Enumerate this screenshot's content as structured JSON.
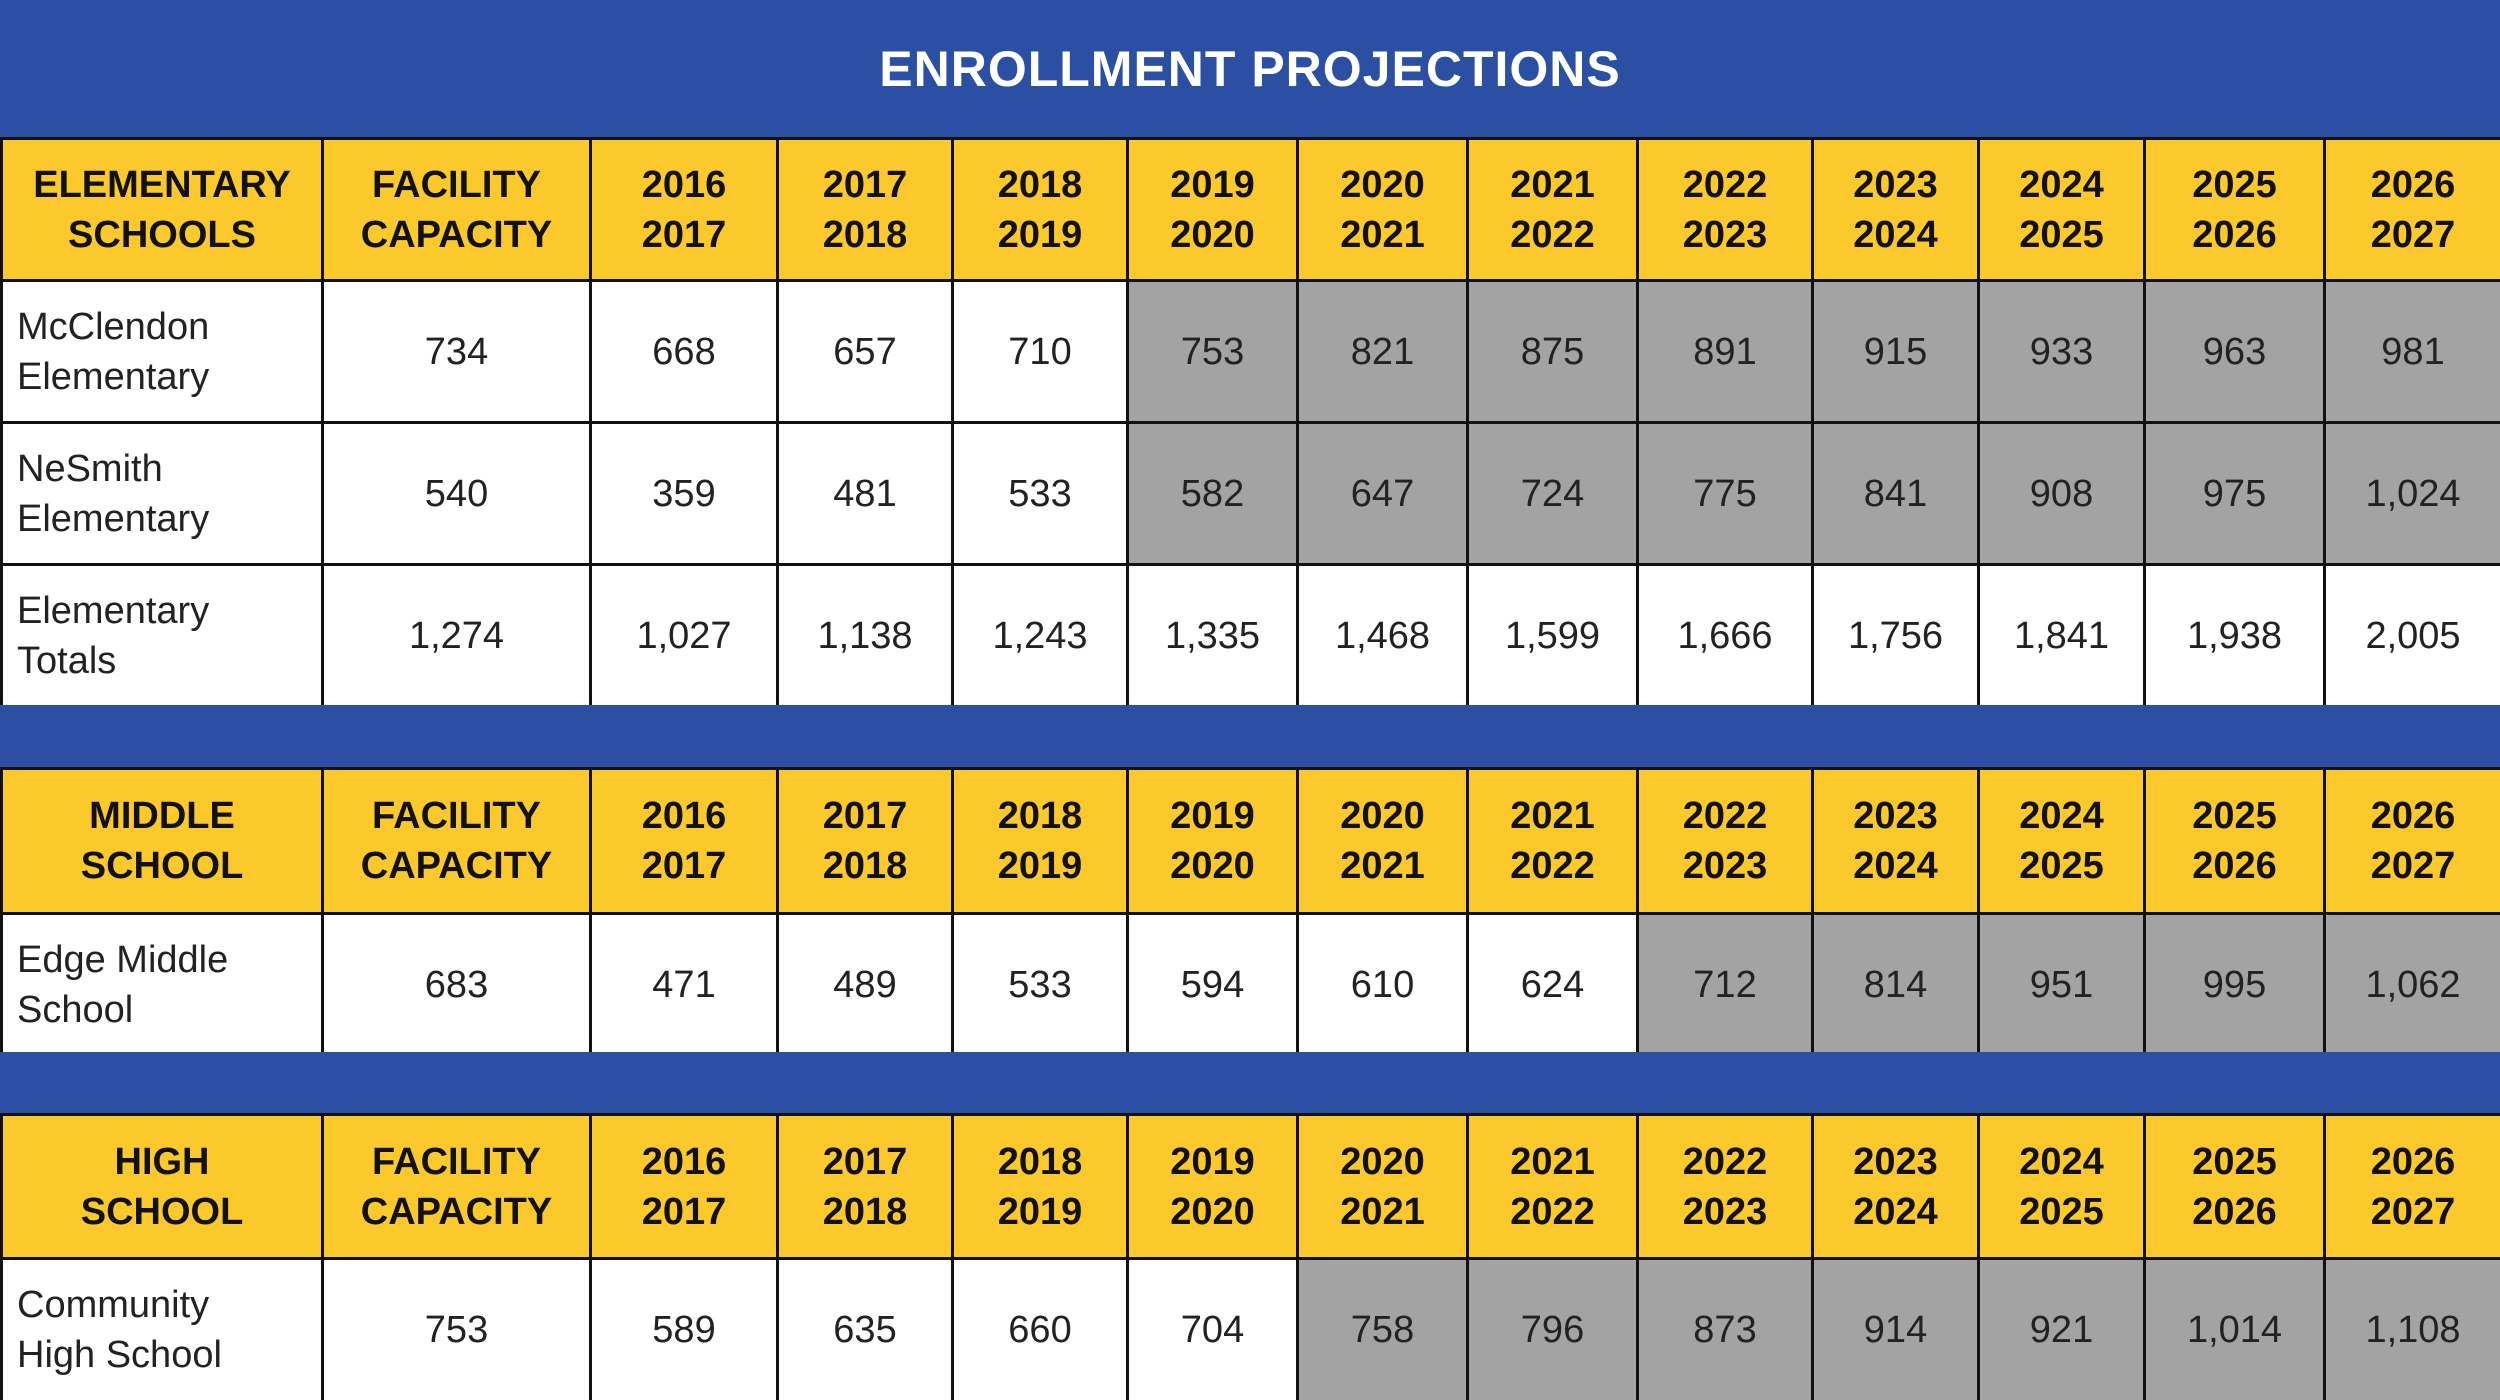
{
  "title": "ENROLLMENT PROJECTIONS",
  "colors": {
    "header_bg": "#2b4fa3",
    "column_header_bg": "#fcc92c",
    "projection_cell_bg": "#a3a3a3",
    "cell_bg": "#ffffff"
  },
  "columns": [
    [
      "FACILITY",
      "CAPACITY"
    ],
    [
      "2016",
      "2017"
    ],
    [
      "2017",
      "2018"
    ],
    [
      "2018",
      "2019"
    ],
    [
      "2019",
      "2020"
    ],
    [
      "2020",
      "2021"
    ],
    [
      "2021",
      "2022"
    ],
    [
      "2022",
      "2023"
    ],
    [
      "2023",
      "2024"
    ],
    [
      "2024",
      "2025"
    ],
    [
      "2025",
      "2026"
    ],
    [
      "2026",
      "2027"
    ]
  ],
  "chart_data": {
    "type": "table",
    "title": "ENROLLMENT PROJECTIONS",
    "sections": [
      {
        "heading": [
          "ELEMENTARY",
          "SCHOOLS"
        ],
        "rows": [
          {
            "name": [
              "McClendon",
              "Elementary"
            ],
            "values": [
              "734",
              "668",
              "657",
              "710",
              "753",
              "821",
              "875",
              "891",
              "915",
              "933",
              "963",
              "981"
            ],
            "shaded_from": 4
          },
          {
            "name": [
              "NeSmith",
              "Elementary"
            ],
            "values": [
              "540",
              "359",
              "481",
              "533",
              "582",
              "647",
              "724",
              "775",
              "841",
              "908",
              "975",
              "1,024"
            ],
            "shaded_from": 4
          },
          {
            "name": [
              "Elementary",
              "Totals"
            ],
            "values": [
              "1,274",
              "1,027",
              "1,138",
              "1,243",
              "1,335",
              "1,468",
              "1,599",
              "1,666",
              "1,756",
              "1,841",
              "1,938",
              "2,005"
            ],
            "shaded_from": null
          }
        ]
      },
      {
        "heading": [
          "MIDDLE",
          "SCHOOL"
        ],
        "rows": [
          {
            "name": [
              "Edge Middle",
              "School"
            ],
            "values": [
              "683",
              "471",
              "489",
              "533",
              "594",
              "610",
              "624",
              "712",
              "814",
              "951",
              "995",
              "1,062"
            ],
            "shaded_from": 7
          }
        ]
      },
      {
        "heading": [
          "HIGH",
          "SCHOOL"
        ],
        "rows": [
          {
            "name": [
              "Community",
              "High School"
            ],
            "values": [
              "753",
              "589",
              "635",
              "660",
              "704",
              "758",
              "796",
              "873",
              "914",
              "921",
              "1,014",
              "1,108"
            ],
            "shaded_from": 5
          }
        ]
      }
    ]
  }
}
